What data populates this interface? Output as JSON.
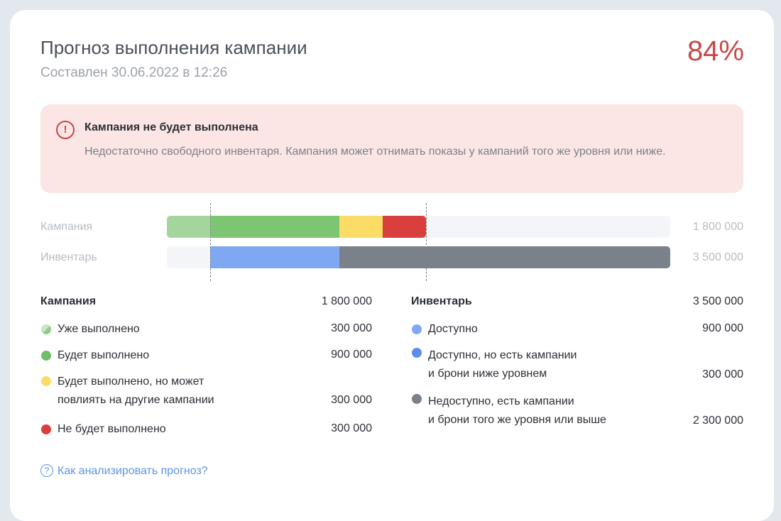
{
  "header": {
    "title": "Прогноз выполнения кампании",
    "subtitle": "Составлен 30.06.2022 в 12:26",
    "percent": "84%"
  },
  "alert": {
    "icon": "exclamation-circle-icon",
    "title": "Кампания не будет выполнена",
    "text": "Недостаточно свободного инвентаря. Кампания может отнимать показы у кампаний того же уровня или ниже."
  },
  "bars": {
    "campaign": {
      "label": "Кампания",
      "total": "1 800 000"
    },
    "inventory": {
      "label": "Инвентарь",
      "total": "3 500 000"
    }
  },
  "chart_data": {
    "type": "bar",
    "scale_max": 3500000,
    "campaign_segments": [
      {
        "name": "Уже выполнено",
        "value": 300000,
        "color": "#a4d69b"
      },
      {
        "name": "Будет выполнено",
        "value": 900000,
        "color": "#7cc673"
      },
      {
        "name": "Будет выполнено, но может повлиять на другие кампании",
        "value": 300000,
        "color": "#fadc66"
      },
      {
        "name": "Не будет выполнено",
        "value": 300000,
        "color": "#d83f3d"
      }
    ],
    "inventory_offset": 300000,
    "inventory_segments": [
      {
        "name": "Доступно, но есть кампании и брони ниже уровнем",
        "value": 300000,
        "color": "#f3f5f8"
      },
      {
        "name": "Доступно",
        "value": 900000,
        "color": "#7fa8f2"
      },
      {
        "name": "Недоступно, есть кампании и брони того же уровня или выше",
        "value": 2300000,
        "color": "#7b818b"
      }
    ]
  },
  "legend": {
    "campaign": {
      "heading": "Кампания",
      "total": "1 800 000",
      "items": [
        {
          "label": "Уже выполнено",
          "value": "300 000",
          "color": "#a4d69b"
        },
        {
          "label": "Будет выполнено",
          "value": "900 000",
          "color": "#6fbf66"
        },
        {
          "label_line1": "Будет выполнено, но может",
          "label_line2": "повлиять на другие кампании",
          "value": "300 000",
          "color": "#fadc66"
        },
        {
          "label": "Не будет выполнено",
          "value": "300 000",
          "color": "#d83f3d"
        }
      ]
    },
    "inventory": {
      "heading": "Инвентарь",
      "total": "3 500 000",
      "items": [
        {
          "label": "Доступно",
          "value": "900 000",
          "color": "#7fa8f2"
        },
        {
          "label_line1": "Доступно, но есть кампании",
          "label_line2": "и брони ниже уровнем",
          "value": "300 000",
          "color": "#5b8de8"
        },
        {
          "label_line1": "Недоступно, есть кампании",
          "label_line2": "и брони того же уровня или выше",
          "value": "2 300 000",
          "color": "#7b818b"
        }
      ]
    }
  },
  "help": {
    "label": "Как анализировать прогноз?",
    "icon": "question-circle-icon"
  }
}
